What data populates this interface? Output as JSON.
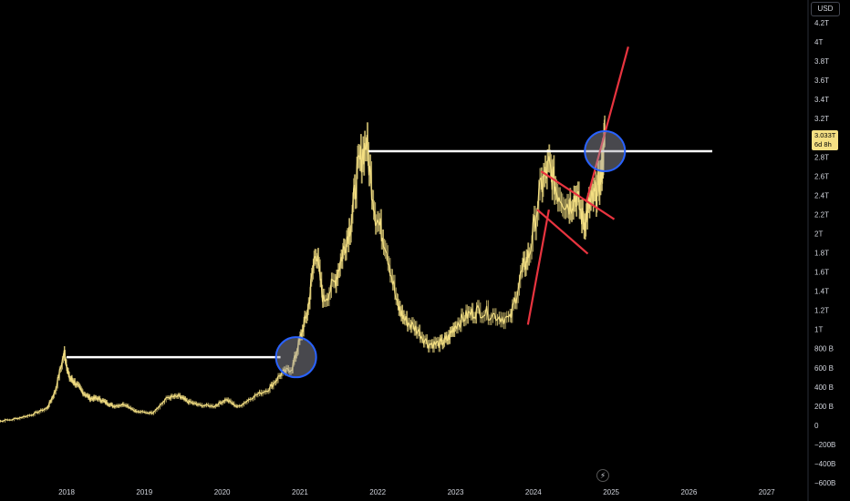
{
  "currency": "USD",
  "last_price": {
    "value": "3.033T",
    "countdown": "6d 8h"
  },
  "colors": {
    "candles": "#f5e083",
    "horizontal_lines": "#ffffff",
    "trend_lines": "#e8343f",
    "circles": "#2962ff",
    "background": "#000000"
  },
  "icons": {
    "event_marker": "lightning-icon"
  },
  "chart_data": {
    "type": "line",
    "title": "",
    "x_ticks": [
      "2018",
      "2019",
      "2020",
      "2021",
      "2022",
      "2023",
      "2024",
      "2025",
      "2026",
      "2027"
    ],
    "y_ticks": [
      "4.2T",
      "4T",
      "3.8T",
      "3.6T",
      "3.4T",
      "3.2T",
      "3T",
      "2.8T",
      "2.6T",
      "2.4T",
      "2.2T",
      "2T",
      "1.8T",
      "1.6T",
      "1.4T",
      "1.2T",
      "1T",
      "800 B",
      "600 B",
      "400 B",
      "200 B",
      "0",
      "−200B",
      "−400B",
      "−600B"
    ],
    "ylim": [
      -600,
      4200
    ],
    "y_unit": "billions USD",
    "series": [
      {
        "x": [
          2017.0,
          2017.3,
          2017.55,
          2017.75,
          2017.85,
          2017.97,
          2018.03,
          2018.1,
          2018.2,
          2018.3,
          2018.4,
          2018.5,
          2018.6,
          2018.75,
          2018.9,
          2019.1,
          2019.3,
          2019.45,
          2019.55,
          2019.7,
          2019.9,
          2020.05,
          2020.2,
          2020.4,
          2020.6,
          2020.75,
          2020.9,
          2021.0,
          2021.1,
          2021.2,
          2021.3,
          2021.45,
          2021.55,
          2021.65,
          2021.75,
          2021.85,
          2021.97,
          2022.1,
          2022.25,
          2022.35,
          2022.5,
          2022.65,
          2022.8,
          2022.9,
          2023.0,
          2023.15,
          2023.3,
          2023.5,
          2023.7,
          2023.85,
          2023.95,
          2024.1,
          2024.2,
          2024.3,
          2024.45,
          2024.55,
          2024.65,
          2024.72,
          2024.8,
          2024.87,
          2024.92
        ],
        "values": [
          30,
          60,
          110,
          180,
          350,
          760,
          500,
          450,
          350,
          280,
          280,
          240,
          200,
          220,
          140,
          130,
          290,
          300,
          250,
          210,
          200,
          270,
          190,
          300,
          380,
          530,
          600,
          900,
          1200,
          1850,
          1300,
          1500,
          1800,
          2100,
          2700,
          2950,
          2200,
          1900,
          1250,
          1100,
          1000,
          850,
          850,
          900,
          1050,
          1150,
          1200,
          1150,
          1100,
          1600,
          1800,
          2500,
          2700,
          2450,
          2300,
          2400,
          2100,
          2300,
          2400,
          2600,
          3033
        ]
      }
    ],
    "annotations": {
      "horizontal_levels": [
        {
          "value": 710,
          "x_from": 2018.0,
          "x_to": 2020.75
        },
        {
          "value": 2860,
          "x_from": 2021.88,
          "x_to": 2026.3
        }
      ],
      "circled_points": [
        {
          "x": 2020.95,
          "y": 710
        },
        {
          "x": 2024.92,
          "y": 2860
        }
      ],
      "trend_lines": [
        {
          "from": [
            2023.93,
            1050
          ],
          "to": [
            2024.2,
            2250
          ]
        },
        {
          "from": [
            2024.1,
            2650
          ],
          "to": [
            2025.04,
            2150
          ]
        },
        {
          "from": [
            2024.05,
            2250
          ],
          "to": [
            2024.7,
            1790
          ]
        },
        {
          "from": [
            2024.68,
            2330
          ],
          "to": [
            2025.22,
            3950
          ]
        }
      ]
    }
  }
}
